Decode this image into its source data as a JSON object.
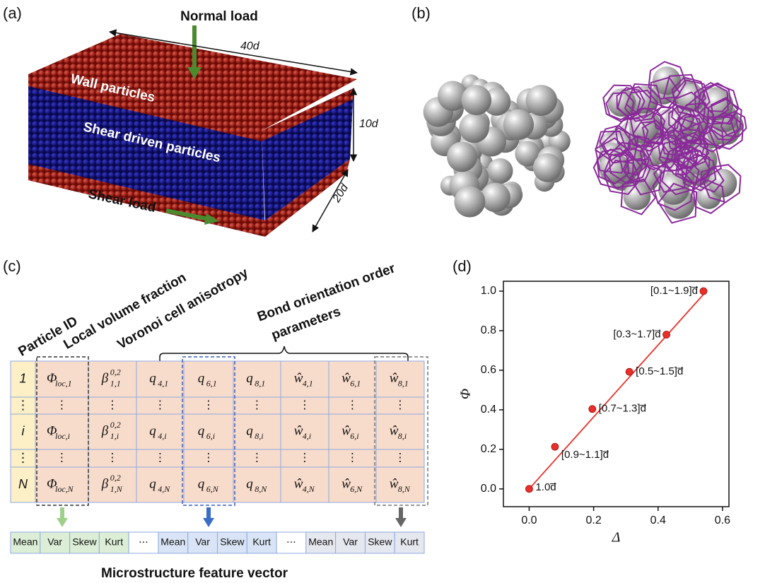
{
  "panel_labels": [
    "(a)",
    "(b)",
    "(c)",
    "(d)"
  ],
  "panel_a": {
    "normal_load": "Normal load",
    "length": "40d",
    "wall": "Wall particles",
    "height": "10d",
    "shear_driven": "Shear driven particles",
    "shear_load": "Shear load",
    "width": "20d"
  },
  "panel_c": {
    "headers": [
      "Particle ID",
      "Local volume fraction",
      "Voronoi cell anisotropy"
    ],
    "bond_header": [
      "Bond orientation order",
      "parameters"
    ],
    "table": {
      "rows": [
        {
          "label": "1",
          "cells": [
            {
              "base": "Φ",
              "sub": "loc,1"
            },
            {
              "base": "β",
              "sup": "0,2",
              "sub": "1,1"
            },
            {
              "base": "q",
              "sub": "4,1"
            },
            {
              "base": "q",
              "sub": "6,1"
            },
            {
              "base": "q",
              "sub": "8,1"
            },
            {
              "base": "ŵ",
              "sub": "4,1"
            },
            {
              "base": "ŵ",
              "sub": "6,1"
            },
            {
              "base": "ŵ",
              "sub": "8,1"
            }
          ]
        },
        {
          "label": "⋮",
          "cells": [
            "⋮",
            "⋮",
            "⋮",
            "⋮",
            "⋮",
            "⋮",
            "⋮",
            "⋮"
          ]
        },
        {
          "label": "i",
          "cells": [
            {
              "base": "Φ",
              "sub": "loc,i"
            },
            {
              "base": "β",
              "sup": "0,2",
              "sub": "1,i"
            },
            {
              "base": "q",
              "sub": "4,i"
            },
            {
              "base": "q",
              "sub": "6,i"
            },
            {
              "base": "q",
              "sub": "8,i"
            },
            {
              "base": "ŵ",
              "sub": "4,i"
            },
            {
              "base": "ŵ",
              "sub": "6,i"
            },
            {
              "base": "ŵ",
              "sub": "8,i"
            }
          ]
        },
        {
          "label": "⋮",
          "cells": [
            "⋮",
            "⋮",
            "⋮",
            "⋮",
            "⋮",
            "⋮",
            "⋮",
            "⋮"
          ]
        },
        {
          "label": "N",
          "cells": [
            {
              "base": "Φ",
              "sub": "loc,N"
            },
            {
              "base": "β",
              "sup": "0,2",
              "sub": "1,N"
            },
            {
              "base": "q",
              "sub": "4,N"
            },
            {
              "base": "q",
              "sub": "6,N"
            },
            {
              "base": "q",
              "sub": "8,N"
            },
            {
              "base": "ŵ",
              "sub": "4,N"
            },
            {
              "base": "ŵ",
              "sub": "6,N"
            },
            {
              "base": "ŵ",
              "sub": "8,N"
            }
          ]
        }
      ]
    },
    "feature_vector": [
      "Mean",
      "Var",
      "Skew",
      "Kurt",
      "⋯",
      "Mean",
      "Var",
      "Skew",
      "Kurt",
      "⋯",
      "Mean",
      "Var",
      "Skew",
      "Kurt"
    ],
    "feature_title": "Microstructure feature vector"
  },
  "chart_data": {
    "type": "scatter",
    "x_label": "Δ",
    "y_label": "Φ",
    "xlim": [
      -0.08,
      0.62
    ],
    "ylim": [
      -0.09,
      1.05
    ],
    "xticks": [
      {
        "value": 0,
        "label": "0.0"
      },
      {
        "value": 0.2,
        "label": "0.2"
      },
      {
        "value": 0.4,
        "label": "0.4"
      },
      {
        "value": 0.6,
        "label": "0.6"
      }
    ],
    "yticks": [
      {
        "value": 0,
        "label": "0.0"
      },
      {
        "value": 0.2,
        "label": "0.2"
      },
      {
        "value": 0.4,
        "label": "0.4"
      },
      {
        "value": 0.6,
        "label": "0.6"
      },
      {
        "value": 0.8,
        "label": "0.8"
      },
      {
        "value": 1,
        "label": "1.0"
      }
    ],
    "series": [
      {
        "color": "#e8302a",
        "x": [
          0,
          0.08,
          0.196,
          0.311,
          0.426,
          0.541
        ],
        "values": [
          0,
          0.213,
          0.404,
          0.592,
          0.78,
          1.0
        ],
        "value_labels": [
          "1.0d̅",
          "[0.9~1.1]d̅",
          "[0.7~1.3]d̅",
          "[0.5~1.5]d̅",
          "[0.3~1.7]d̅",
          "[0.1~1.9]d̅"
        ]
      }
    ],
    "fit_line": {
      "color": "#e8302a",
      "x": [
        0,
        0.55
      ],
      "values": [
        0,
        1.0
      ]
    }
  }
}
